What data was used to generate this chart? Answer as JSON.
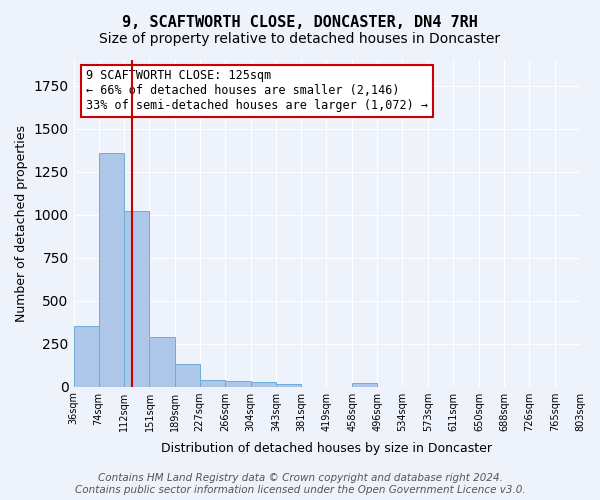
{
  "title": "9, SCAFTWORTH CLOSE, DONCASTER, DN4 7RH",
  "subtitle": "Size of property relative to detached houses in Doncaster",
  "xlabel": "Distribution of detached houses by size in Doncaster",
  "ylabel": "Number of detached properties",
  "bin_labels": [
    "36sqm",
    "74sqm",
    "112sqm",
    "151sqm",
    "189sqm",
    "227sqm",
    "266sqm",
    "304sqm",
    "343sqm",
    "381sqm",
    "419sqm",
    "458sqm",
    "496sqm",
    "534sqm",
    "573sqm",
    "611sqm",
    "650sqm",
    "688sqm",
    "726sqm",
    "765sqm",
    "803sqm"
  ],
  "bin_edges": [
    36,
    74,
    112,
    151,
    189,
    227,
    266,
    304,
    343,
    381,
    419,
    458,
    496,
    534,
    573,
    611,
    650,
    688,
    726,
    765,
    803
  ],
  "bar_heights": [
    355,
    1360,
    1020,
    290,
    130,
    40,
    35,
    25,
    15,
    0,
    0,
    20,
    0,
    0,
    0,
    0,
    0,
    0,
    0,
    0
  ],
  "bar_color": "#aec6e8",
  "bar_edge_color": "#6aaed6",
  "property_value": 125,
  "vline_color": "#cc0000",
  "annotation_text": "9 SCAFTWORTH CLOSE: 125sqm\n← 66% of detached houses are smaller (2,146)\n33% of semi-detached houses are larger (1,072) →",
  "annotation_box_color": "#ffffff",
  "annotation_box_edge_color": "#cc0000",
  "ylim": [
    0,
    1900
  ],
  "background_color": "#eef2fb",
  "footer_text": "Contains HM Land Registry data © Crown copyright and database right 2024.\nContains public sector information licensed under the Open Government Licence v3.0.",
  "title_fontsize": 11,
  "subtitle_fontsize": 10,
  "annotation_fontsize": 8.5,
  "footer_fontsize": 7.5
}
